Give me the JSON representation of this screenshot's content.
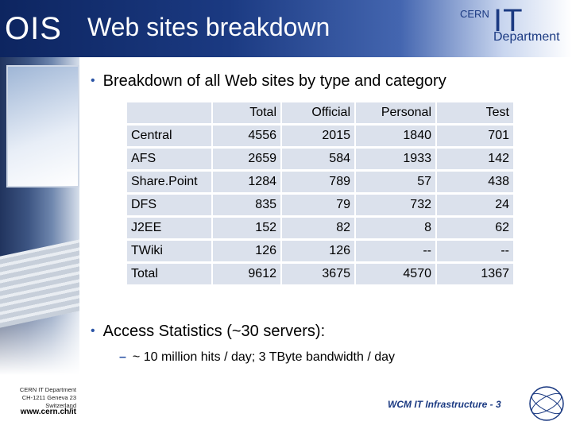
{
  "header": {
    "ois": "OIS",
    "title": "Web sites breakdown",
    "logo": {
      "cern": "CERN",
      "it": "IT",
      "department": "Department"
    }
  },
  "sidebar": {
    "address": [
      "CERN IT Department",
      "CH-1211 Geneva 23",
      "Switzerland"
    ],
    "url": "www.cern.ch/it"
  },
  "bullet1": "Breakdown of all Web sites by type and category",
  "table": {
    "columns": [
      "Total",
      "Official",
      "Personal",
      "Test"
    ],
    "rows": [
      {
        "label": "Central",
        "values": [
          "4556",
          "2015",
          "1840",
          "701"
        ]
      },
      {
        "label": "AFS",
        "values": [
          "2659",
          "584",
          "1933",
          "142"
        ]
      },
      {
        "label": "Share.Point",
        "values": [
          "1284",
          "789",
          "57",
          "438"
        ]
      },
      {
        "label": "DFS",
        "values": [
          "835",
          "79",
          "732",
          "24"
        ]
      },
      {
        "label": "J2EE",
        "values": [
          "152",
          "82",
          "8",
          "62"
        ]
      },
      {
        "label": "TWiki",
        "values": [
          "126",
          "126",
          "--",
          "--"
        ]
      },
      {
        "label": "Total",
        "values": [
          "9612",
          "3675",
          "4570",
          "1367"
        ]
      }
    ]
  },
  "bullet2": "Access Statistics (~30 servers):",
  "sub_bullet": "~ 10 million hits / day; 3 TByte bandwidth / day",
  "footer": "WCM IT Infrastructure - 3",
  "colors": {
    "header": "#1b3a82",
    "table_bg": "#dbe1ec",
    "bullet": "#2c55a6"
  }
}
